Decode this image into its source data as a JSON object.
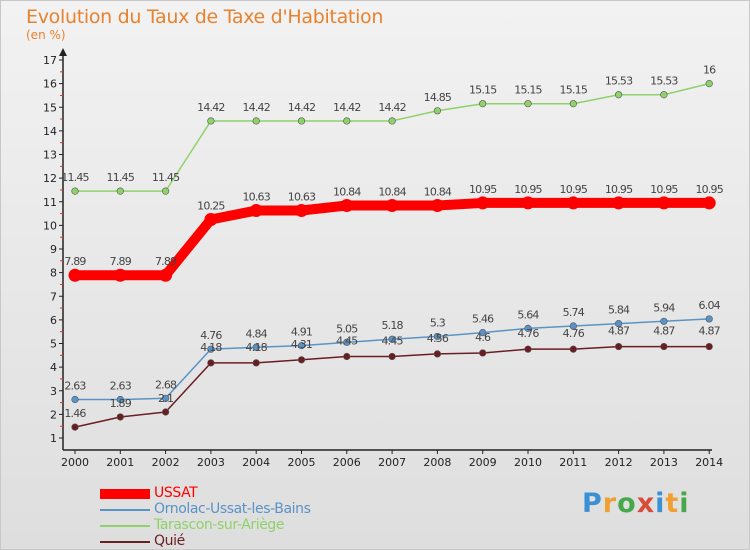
{
  "title": "Evolution du Taux de Taxe d'Habitation",
  "subtitle": "(en %)",
  "logo_text": "Proxiti",
  "chart_data": {
    "type": "line",
    "x": [
      "2000",
      "2001",
      "2002",
      "2003",
      "2004",
      "2005",
      "2006",
      "2007",
      "2008",
      "2009",
      "2010",
      "2011",
      "2012",
      "2013",
      "2014"
    ],
    "yticks": [
      1,
      2,
      3,
      4,
      5,
      6,
      7,
      8,
      9,
      10,
      11,
      12,
      13,
      14,
      15,
      16,
      17
    ],
    "ylim": [
      0.5,
      17.2
    ],
    "series": [
      {
        "name": "USSAT",
        "color": "#ff0000",
        "values": [
          7.89,
          7.89,
          7.89,
          10.25,
          10.63,
          10.63,
          10.84,
          10.84,
          10.84,
          10.95,
          10.95,
          10.95,
          10.95,
          10.95,
          10.95
        ],
        "labels": [
          "7.89",
          "7.89",
          "7.89",
          "10.25",
          "10.63",
          "10.63",
          "10.84",
          "10.84",
          "10.84",
          "10.95",
          "10.95",
          "10.95",
          "10.95",
          "10.95",
          "10.95"
        ]
      },
      {
        "name": "Ornolac-Ussat-les-Bains",
        "color": "#5b93c7",
        "values": [
          2.63,
          2.63,
          2.68,
          4.76,
          4.84,
          4.91,
          5.05,
          5.18,
          5.3,
          5.46,
          5.64,
          5.74,
          5.84,
          5.94,
          6.04
        ],
        "labels": [
          "2.63",
          "2.63",
          "2.68",
          "4.76",
          "4.84",
          "4.91",
          "5.05",
          "5.18",
          "5.3",
          "5.46",
          "5.64",
          "5.74",
          "5.84",
          "5.94",
          "6.04"
        ]
      },
      {
        "name": "Tarascon-sur-Ariège",
        "color": "#8fd16a",
        "values": [
          11.45,
          11.45,
          11.45,
          14.42,
          14.42,
          14.42,
          14.42,
          14.42,
          14.85,
          15.15,
          15.15,
          15.15,
          15.53,
          15.53,
          16
        ],
        "labels": [
          "11.45",
          "11.45",
          "11.45",
          "14.42",
          "14.42",
          "14.42",
          "14.42",
          "14.42",
          "14.85",
          "15.15",
          "15.15",
          "15.15",
          "15.53",
          "15.53",
          "16"
        ]
      },
      {
        "name": "Quié",
        "color": "#6b1e22",
        "values": [
          1.46,
          1.89,
          2.1,
          4.18,
          4.18,
          4.31,
          4.45,
          4.45,
          4.56,
          4.6,
          4.76,
          4.76,
          4.87,
          4.87,
          4.87
        ],
        "labels": [
          "1.46",
          "1.89",
          "2.1",
          "4.18",
          "4.18",
          "4.31",
          "4.45",
          "4.45",
          "4.56",
          "4.6",
          "4.76",
          "4.76",
          "4.87",
          "4.87",
          "4.87"
        ]
      }
    ]
  }
}
